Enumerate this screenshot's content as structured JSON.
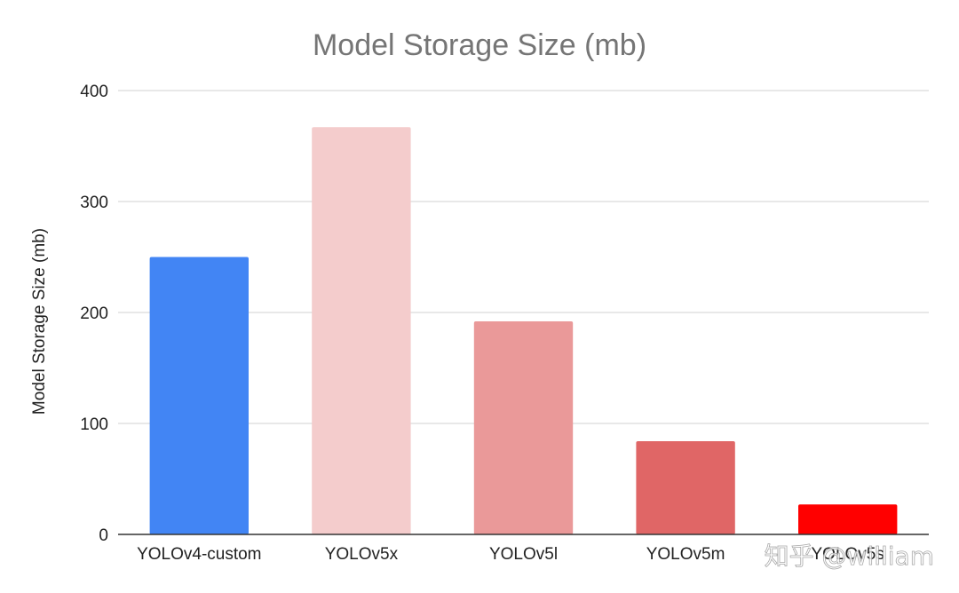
{
  "chart_data": {
    "type": "bar",
    "title": "Model Storage Size (mb)",
    "xlabel": "",
    "ylabel": "Model Storage Size (mb)",
    "ylim": [
      0,
      400
    ],
    "yticks": [
      0,
      100,
      200,
      300,
      400
    ],
    "grid": true,
    "categories": [
      "YOLOv4-custom",
      "YOLOv5x",
      "YOLOv5l",
      "YOLOv5m",
      "YOLOv5s"
    ],
    "values": [
      250,
      367,
      192,
      84,
      27
    ],
    "colors": [
      "#4285f4",
      "#f4cccc",
      "#ea9999",
      "#e06666",
      "#ff0000"
    ]
  },
  "watermark": "知乎 @william"
}
